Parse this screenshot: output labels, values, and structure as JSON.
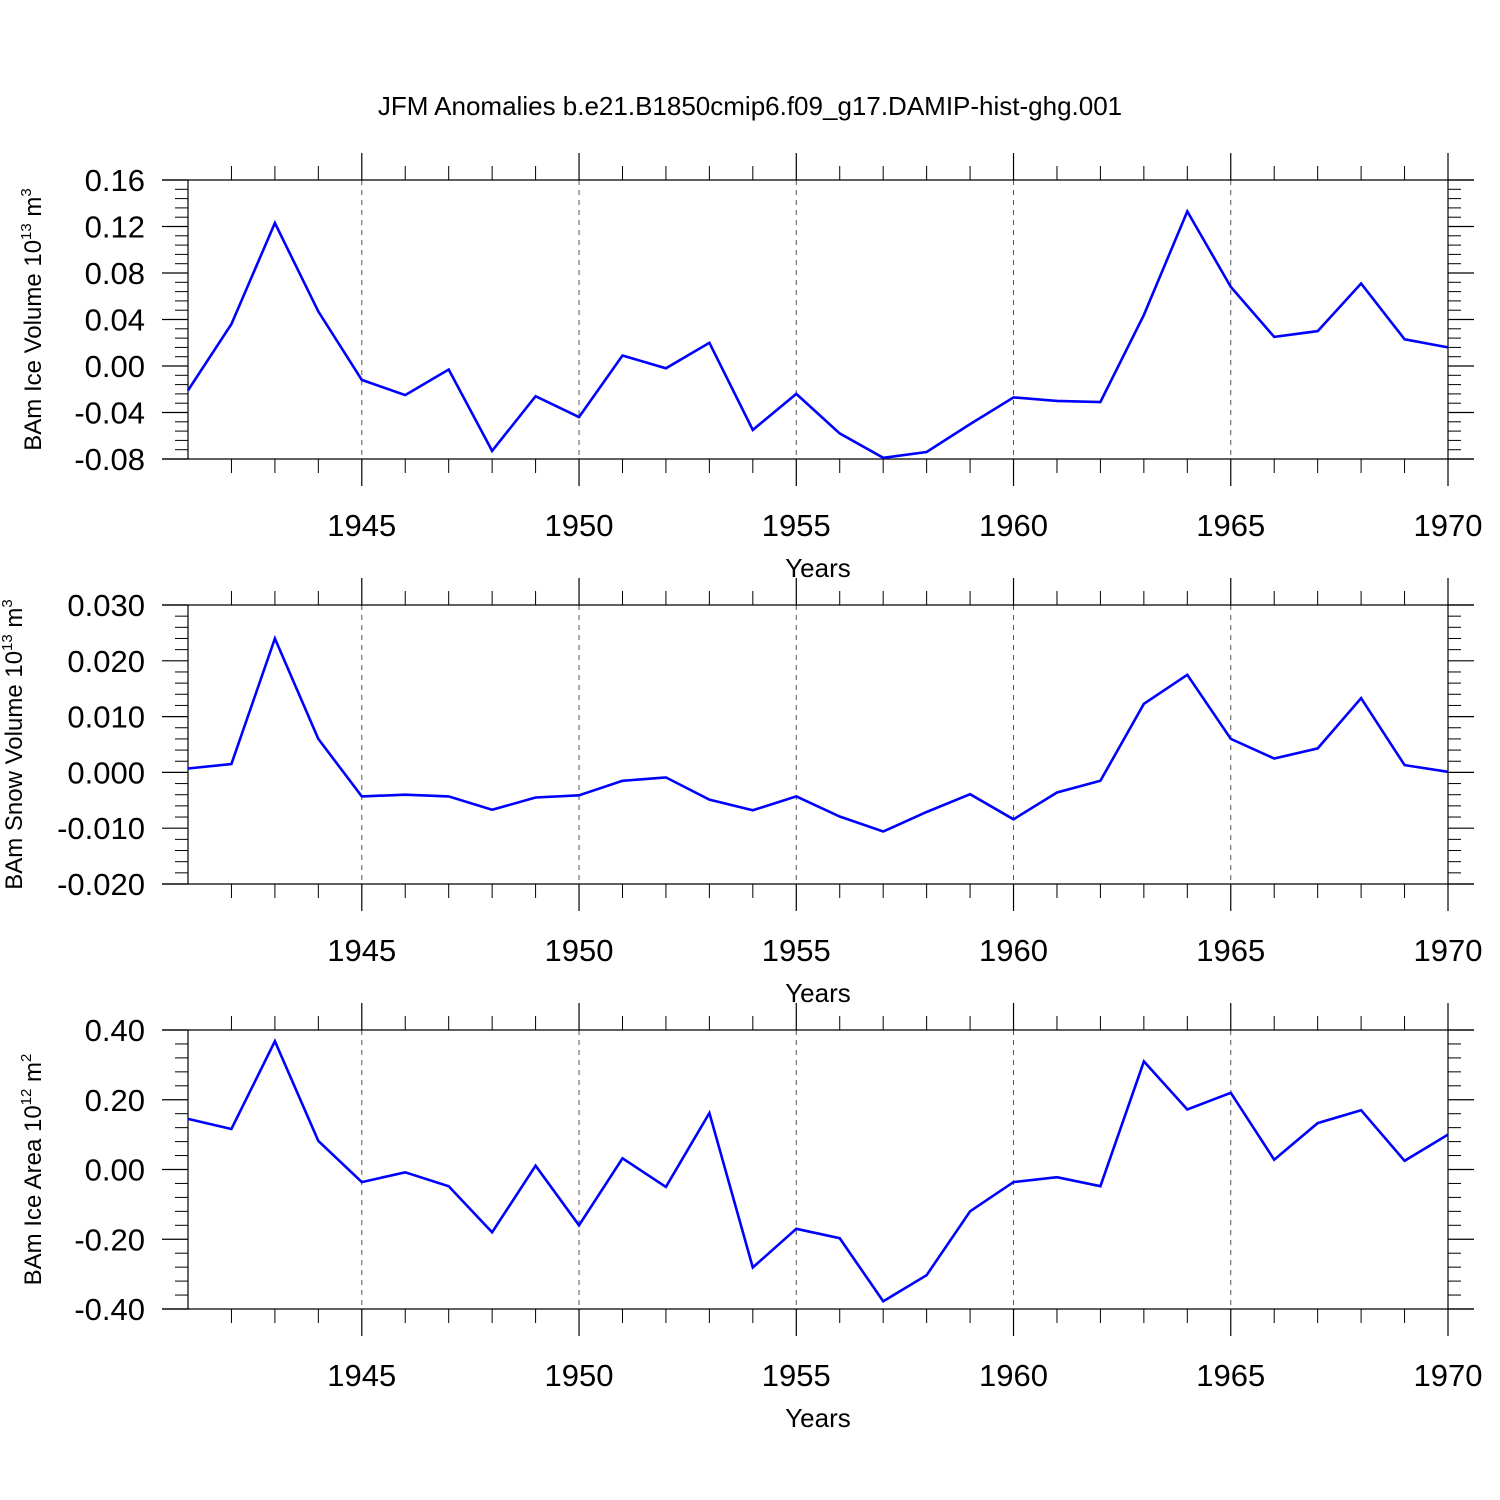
{
  "figure": {
    "title": "JFM Anomalies b.e21.B1850cmip6.f09_g17.DAMIP-hist-ghg.001"
  },
  "colors": {
    "line": "#0000ff",
    "axis": "#000000",
    "grid": "#555555"
  },
  "chart_data": [
    {
      "type": "line",
      "ylabel_main": "BAm Ice Volume 10",
      "ylabel_exp": "13",
      "ylabel_unit": " m",
      "ylabel_unit_exp": "3",
      "xlabel": "Years",
      "xlim": [
        1941,
        1970
      ],
      "ylim": [
        -0.08,
        0.16
      ],
      "yticks": [
        -0.08,
        -0.04,
        0.0,
        0.04,
        0.08,
        0.12,
        0.16
      ],
      "ytick_labels": [
        "-0.08",
        "-0.04",
        "0.00",
        "0.04",
        "0.08",
        "0.12",
        "0.16"
      ],
      "xticks": [
        1945,
        1950,
        1955,
        1960,
        1965,
        1970
      ],
      "xtick_labels": [
        "1945",
        "1950",
        "1955",
        "1960",
        "1965",
        "1970"
      ],
      "grid": "vertical dashed at major x ticks",
      "x": [
        1941,
        1942,
        1943,
        1944,
        1945,
        1946,
        1947,
        1948,
        1949,
        1950,
        1951,
        1952,
        1953,
        1954,
        1955,
        1956,
        1957,
        1958,
        1959,
        1960,
        1961,
        1962,
        1963,
        1964,
        1965,
        1966,
        1967,
        1968,
        1969,
        1970
      ],
      "values": [
        -0.021,
        0.036,
        0.123,
        0.047,
        -0.012,
        -0.025,
        -0.003,
        -0.073,
        -0.026,
        -0.044,
        0.009,
        -0.002,
        0.02,
        -0.055,
        -0.024,
        -0.058,
        -0.079,
        -0.074,
        -0.05,
        -0.027,
        -0.03,
        -0.031,
        0.044,
        0.133,
        0.068,
        0.025,
        0.03,
        0.071,
        0.023,
        0.016
      ]
    },
    {
      "type": "line",
      "ylabel_main": "BAm Snow Volume 10",
      "ylabel_exp": "13",
      "ylabel_unit": " m",
      "ylabel_unit_exp": "3",
      "xlabel": "Years",
      "xlim": [
        1941,
        1970
      ],
      "ylim": [
        -0.02,
        0.03
      ],
      "yticks": [
        -0.02,
        -0.01,
        0.0,
        0.01,
        0.02,
        0.03
      ],
      "ytick_labels": [
        "-0.020",
        "-0.010",
        "0.000",
        "0.010",
        "0.020",
        "0.030"
      ],
      "xticks": [
        1945,
        1950,
        1955,
        1960,
        1965,
        1970
      ],
      "xtick_labels": [
        "1945",
        "1950",
        "1955",
        "1960",
        "1965",
        "1970"
      ],
      "grid": "vertical dashed at major x ticks",
      "x": [
        1941,
        1942,
        1943,
        1944,
        1945,
        1946,
        1947,
        1948,
        1949,
        1950,
        1951,
        1952,
        1953,
        1954,
        1955,
        1956,
        1957,
        1958,
        1959,
        1960,
        1961,
        1962,
        1963,
        1964,
        1965,
        1966,
        1967,
        1968,
        1969,
        1970
      ],
      "values": [
        0.0007,
        0.0015,
        0.024,
        0.006,
        -0.0043,
        -0.004,
        -0.0043,
        -0.0067,
        -0.0045,
        -0.0041,
        -0.0015,
        -0.0009,
        -0.0049,
        -0.0068,
        -0.0043,
        -0.0079,
        -0.0106,
        -0.0071,
        -0.0039,
        -0.0084,
        -0.0036,
        -0.0015,
        0.0123,
        0.0175,
        0.006,
        0.0025,
        0.0043,
        0.0133,
        0.0013,
        0.0001
      ]
    },
    {
      "type": "line",
      "ylabel_main": "BAm Ice Area 10",
      "ylabel_exp": "12",
      "ylabel_unit": " m",
      "ylabel_unit_exp": "2",
      "xlabel": "Years",
      "xlim": [
        1941,
        1970
      ],
      "ylim": [
        -0.4,
        0.4
      ],
      "yticks": [
        -0.4,
        -0.2,
        0.0,
        0.2,
        0.4
      ],
      "ytick_labels": [
        "-0.40",
        "-0.20",
        "0.00",
        "0.20",
        "0.40"
      ],
      "xticks": [
        1945,
        1950,
        1955,
        1960,
        1965,
        1970
      ],
      "xtick_labels": [
        "1945",
        "1950",
        "1955",
        "1960",
        "1965",
        "1970"
      ],
      "grid": "vertical dashed at major x ticks",
      "x": [
        1941,
        1942,
        1943,
        1944,
        1945,
        1946,
        1947,
        1948,
        1949,
        1950,
        1951,
        1952,
        1953,
        1954,
        1955,
        1956,
        1957,
        1958,
        1959,
        1960,
        1961,
        1962,
        1963,
        1964,
        1965,
        1966,
        1967,
        1968,
        1969,
        1970
      ],
      "values": [
        0.145,
        0.116,
        0.368,
        0.082,
        -0.036,
        -0.008,
        -0.048,
        -0.18,
        0.011,
        -0.16,
        0.032,
        -0.05,
        0.162,
        -0.281,
        -0.17,
        -0.197,
        -0.378,
        -0.303,
        -0.12,
        -0.036,
        -0.022,
        -0.048,
        0.31,
        0.172,
        0.22,
        0.028,
        0.133,
        0.17,
        0.025,
        0.1
      ]
    }
  ]
}
